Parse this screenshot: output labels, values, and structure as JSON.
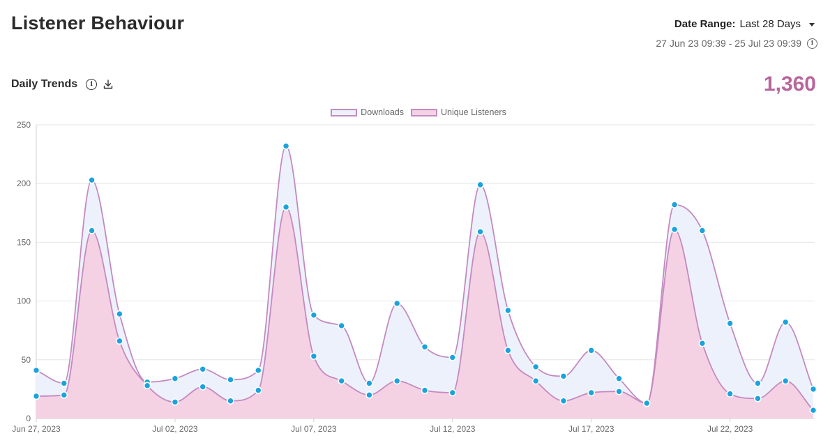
{
  "header": {
    "title": "Listener Behaviour",
    "date_range_label": "Date Range:",
    "date_range_value": "Last 28 Days",
    "date_span": "27 Jun 23 09:39 - 25 Jul 23 09:39"
  },
  "section": {
    "title": "Daily Trends",
    "total": "1,360"
  },
  "colors": {
    "downloads_fill": "#edf1fb",
    "listeners_fill": "#f5d1e4",
    "line": "#c48ac0",
    "point": "#1aa3dd",
    "total": "#b8669b"
  },
  "chart_data": {
    "type": "area",
    "legend_position": "top-center",
    "grid": true,
    "ylim": [
      0,
      250
    ],
    "yticks": [
      "0",
      "50",
      "100",
      "150",
      "200",
      "250"
    ],
    "xtick_labels": [
      {
        "index": 0,
        "label": "Jun 27, 2023"
      },
      {
        "index": 5,
        "label": "Jul 02, 2023"
      },
      {
        "index": 10,
        "label": "Jul 07, 2023"
      },
      {
        "index": 15,
        "label": "Jul 12, 2023"
      },
      {
        "index": 20,
        "label": "Jul 17, 2023"
      },
      {
        "index": 25,
        "label": "Jul 22, 2023"
      }
    ],
    "x": [
      "Jun 27, 2023",
      "Jun 28, 2023",
      "Jun 29, 2023",
      "Jun 30, 2023",
      "Jul 01, 2023",
      "Jul 02, 2023",
      "Jul 03, 2023",
      "Jul 04, 2023",
      "Jul 05, 2023",
      "Jul 06, 2023",
      "Jul 07, 2023",
      "Jul 08, 2023",
      "Jul 09, 2023",
      "Jul 10, 2023",
      "Jul 11, 2023",
      "Jul 12, 2023",
      "Jul 13, 2023",
      "Jul 14, 2023",
      "Jul 15, 2023",
      "Jul 16, 2023",
      "Jul 17, 2023",
      "Jul 18, 2023",
      "Jul 19, 2023",
      "Jul 20, 2023",
      "Jul 21, 2023",
      "Jul 22, 2023",
      "Jul 23, 2023",
      "Jul 24, 2023",
      "Jul 25, 2023"
    ],
    "series": [
      {
        "name": "Downloads",
        "values": [
          41,
          30,
          203,
          89,
          31,
          34,
          42,
          33,
          41,
          232,
          88,
          79,
          30,
          98,
          61,
          52,
          199,
          92,
          44,
          36,
          58,
          34,
          13,
          182,
          160,
          81,
          30,
          82,
          25
        ]
      },
      {
        "name": "Unique Listeners",
        "values": [
          19,
          20,
          160,
          66,
          28,
          14,
          27,
          15,
          24,
          180,
          53,
          32,
          20,
          32,
          24,
          22,
          159,
          58,
          32,
          15,
          22,
          23,
          13,
          161,
          64,
          21,
          17,
          32,
          7
        ]
      }
    ]
  }
}
